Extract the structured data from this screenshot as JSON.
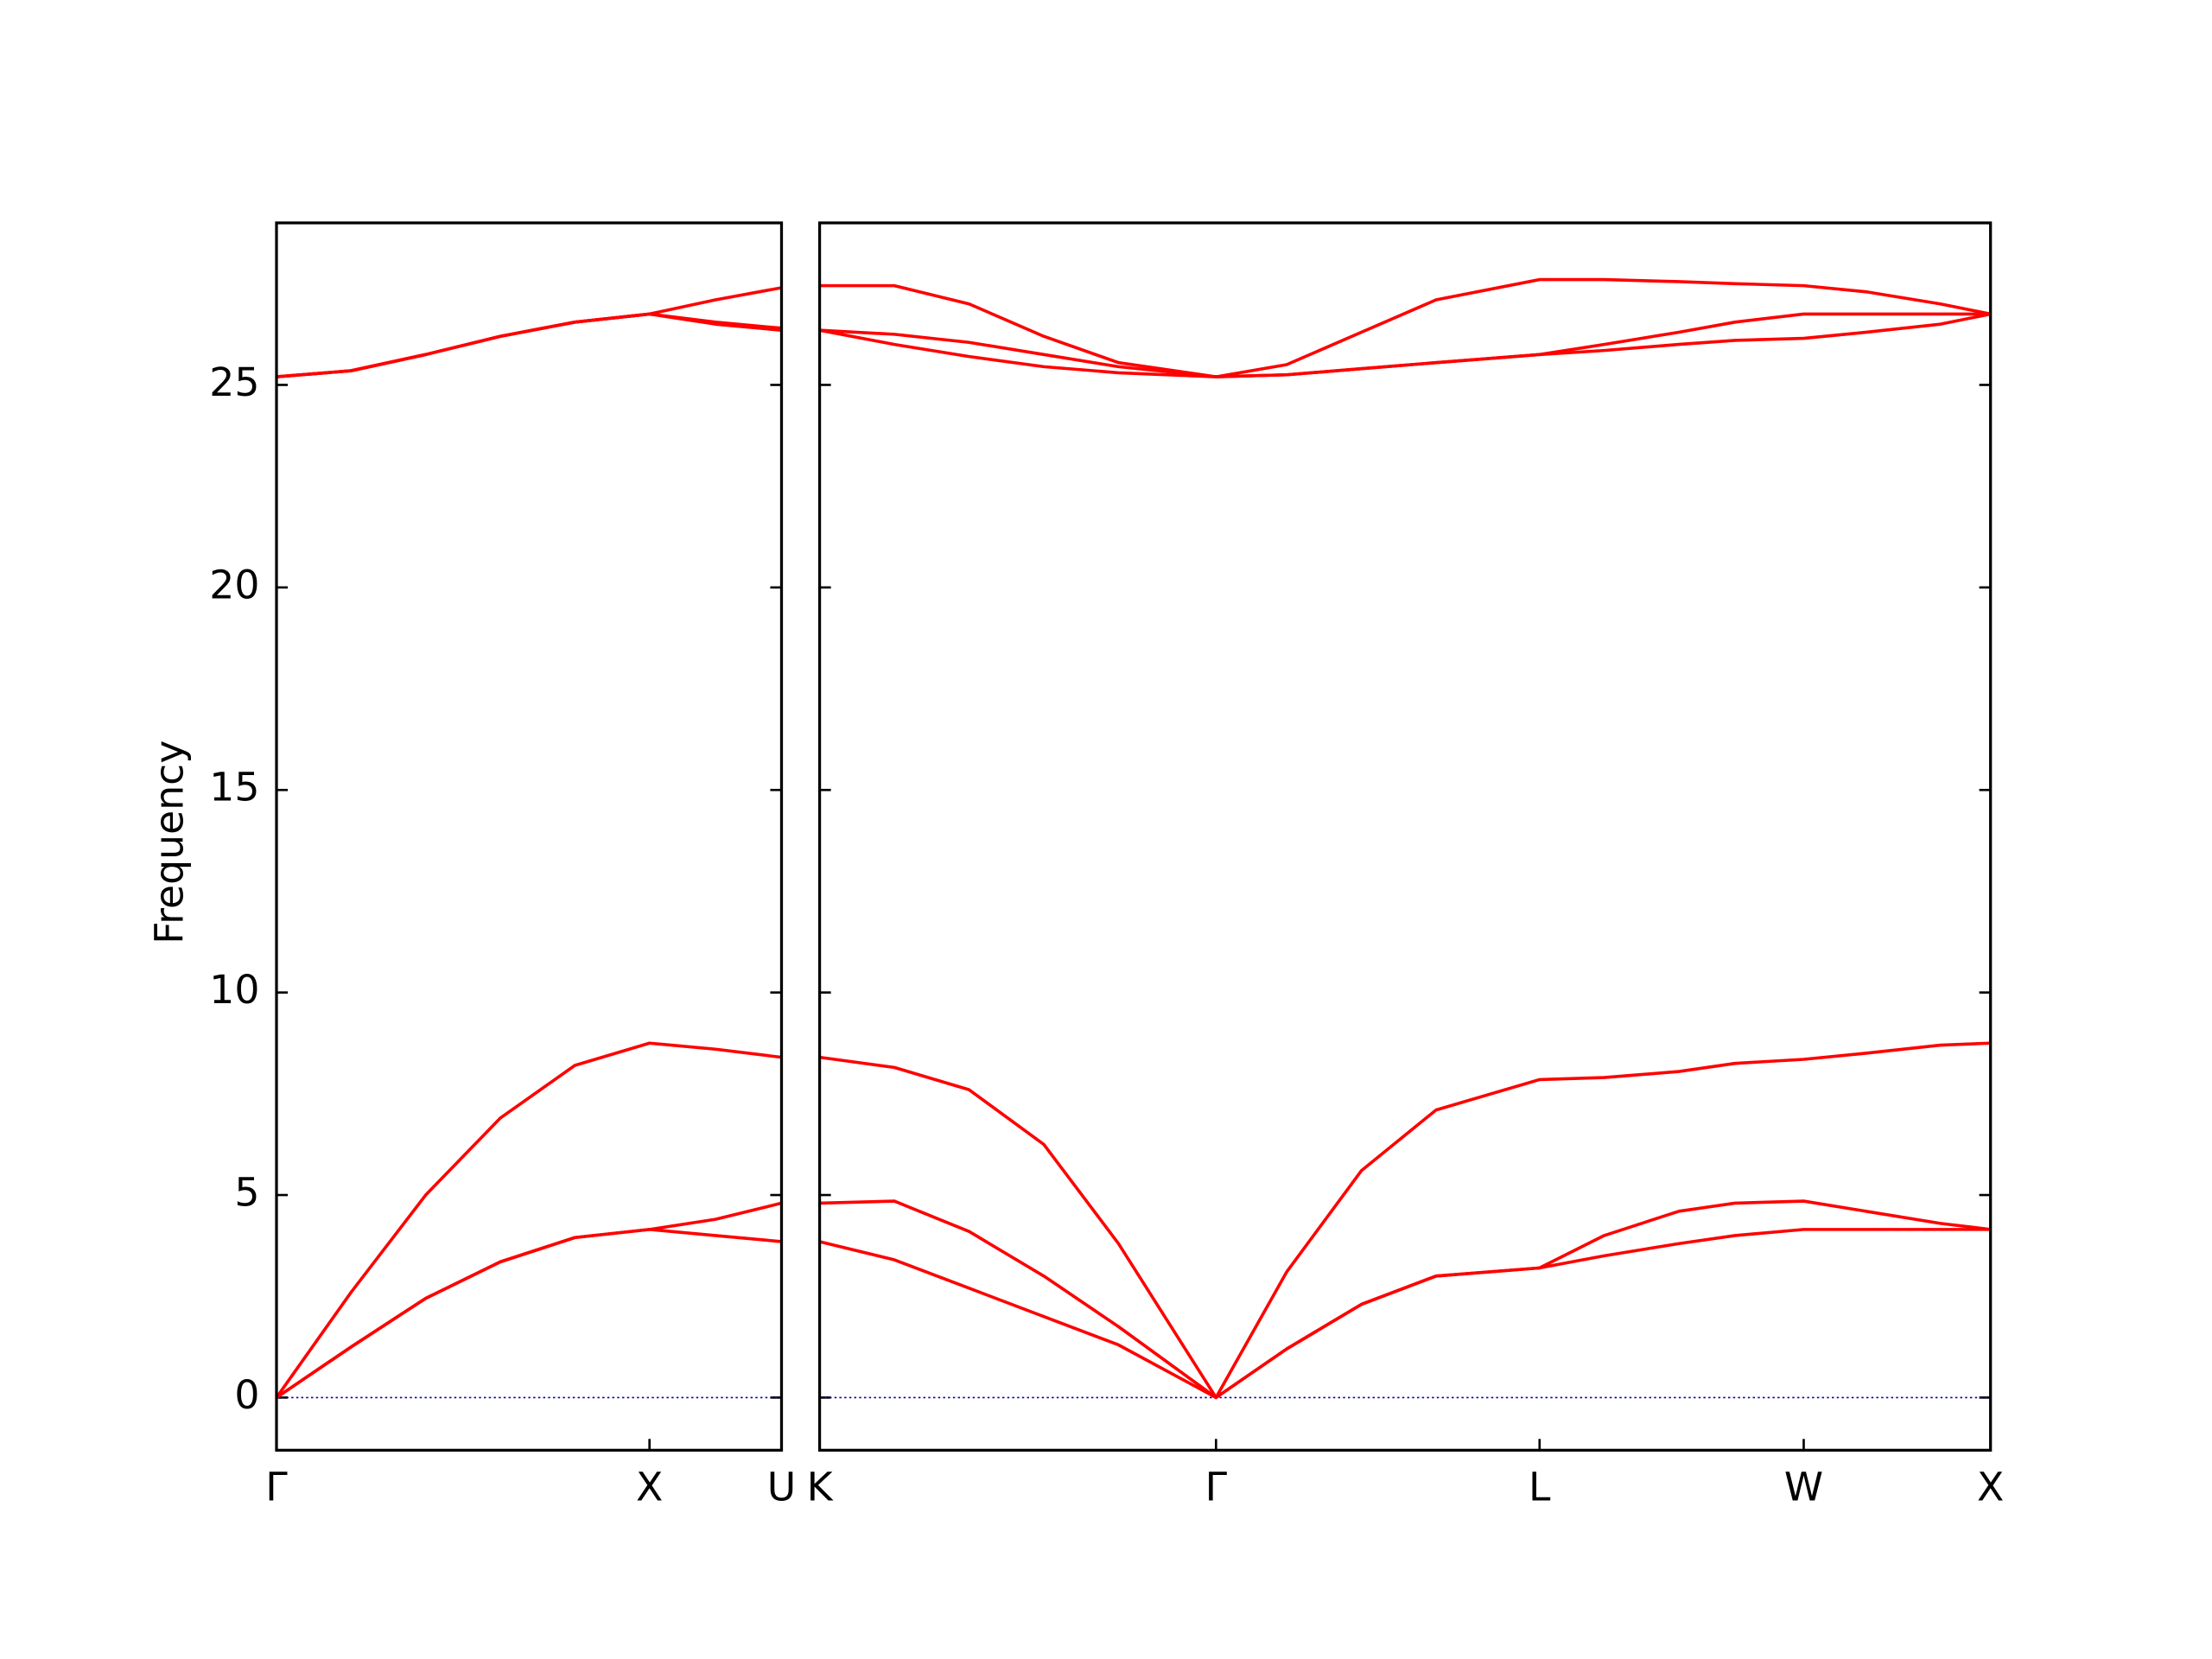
{
  "chart_data": [
    {
      "type": "line",
      "ylabel": "Frequency",
      "color": "#ff0000",
      "xlim": [
        0,
        1.354
      ],
      "xticks": [
        {
          "value": 0,
          "label": "Γ"
        },
        {
          "value": 1,
          "label": "X"
        },
        {
          "value": 1.354,
          "label": "U"
        }
      ],
      "ylim": [
        -1.3,
        29
      ],
      "yticks": [
        0,
        5,
        10,
        15,
        20,
        25
      ],
      "x": [
        0,
        0.2,
        0.4,
        0.6,
        0.8,
        1.0,
        1.177,
        1.354
      ],
      "series": [
        {
          "values": [
            0,
            1.25,
            2.45,
            3.35,
            3.95,
            4.15,
            4.0,
            3.85
          ]
        },
        {
          "values": [
            0,
            1.25,
            2.45,
            3.35,
            3.95,
            4.15,
            4.4,
            4.8
          ]
        },
        {
          "values": [
            0,
            2.6,
            5.0,
            6.9,
            8.2,
            8.75,
            8.6,
            8.4
          ]
        },
        {
          "values": [
            25.2,
            25.35,
            25.75,
            26.2,
            26.55,
            26.75,
            26.5,
            26.35
          ]
        },
        {
          "values": [
            25.2,
            25.35,
            25.75,
            26.2,
            26.55,
            26.75,
            26.55,
            26.4
          ]
        },
        {
          "values": [
            25.2,
            25.35,
            25.75,
            26.2,
            26.55,
            26.75,
            27.1,
            27.4
          ]
        }
      ]
    },
    {
      "type": "line",
      "color": "#ff0000",
      "xlim": [
        0,
        3.134
      ],
      "xticks": [
        {
          "value": 0,
          "label": "K"
        },
        {
          "value": 1.061,
          "label": "Γ"
        },
        {
          "value": 1.927,
          "label": "L"
        },
        {
          "value": 2.634,
          "label": "W"
        },
        {
          "value": 3.134,
          "label": "X"
        }
      ],
      "ylim": [
        -1.3,
        29
      ],
      "x": [
        0,
        0.2,
        0.4,
        0.6,
        0.8,
        1.061,
        1.25,
        1.45,
        1.65,
        1.927,
        2.1,
        2.3,
        2.45,
        2.634,
        2.8,
        3.0,
        3.134
      ],
      "series": [
        {
          "values": [
            3.85,
            3.4,
            2.7,
            2.0,
            1.3,
            0,
            1.2,
            2.3,
            3.0,
            3.2,
            3.5,
            3.8,
            4.0,
            4.15,
            4.15,
            4.15,
            4.15
          ]
        },
        {
          "values": [
            4.8,
            4.85,
            4.1,
            3.0,
            1.75,
            0,
            1.2,
            2.3,
            3.0,
            3.2,
            4.0,
            4.6,
            4.8,
            4.85,
            4.6,
            4.3,
            4.15
          ]
        },
        {
          "values": [
            8.4,
            8.15,
            7.6,
            6.25,
            3.8,
            0,
            3.1,
            5.6,
            7.1,
            7.85,
            7.9,
            8.05,
            8.25,
            8.35,
            8.5,
            8.7,
            8.75
          ]
        },
        {
          "values": [
            26.35,
            26.0,
            25.7,
            25.45,
            25.3,
            25.2,
            25.25,
            25.4,
            25.55,
            25.75,
            25.85,
            26.0,
            26.1,
            26.15,
            26.3,
            26.5,
            26.75
          ]
        },
        {
          "values": [
            26.35,
            26.25,
            26.05,
            25.75,
            25.45,
            25.2,
            25.25,
            25.4,
            25.55,
            25.75,
            26.0,
            26.3,
            26.55,
            26.75,
            26.75,
            26.75,
            26.75
          ]
        },
        {
          "values": [
            27.45,
            27.45,
            27.0,
            26.2,
            25.55,
            25.2,
            25.5,
            26.3,
            27.1,
            27.6,
            27.6,
            27.55,
            27.5,
            27.45,
            27.3,
            27.0,
            26.75
          ]
        }
      ]
    }
  ]
}
